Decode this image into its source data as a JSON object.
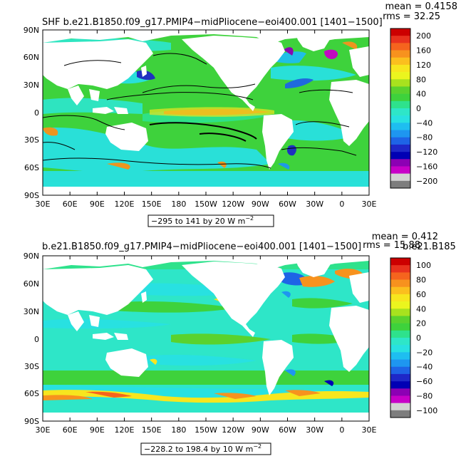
{
  "panels": [
    {
      "title": "SHF b.e21.B1850.f09_g17.PMIP4−midPliocene−eoi400.001  [1401−1500]",
      "mean_label": "mean = 0.4158",
      "rms_label": "rms = 32.25",
      "range_label": "−295 to 141 by 20  W m",
      "range_exp": "−2",
      "colorbar_labels": [
        "200",
        "160",
        "120",
        "80",
        "40",
        "0",
        "−40",
        "−80",
        "−120",
        "−160",
        "−200"
      ],
      "colors": [
        "#cc0000",
        "#e8321e",
        "#f5641e",
        "#f7921e",
        "#fbbf1e",
        "#f7e61e",
        "#ebf51e",
        "#a8e21e",
        "#5ad22e",
        "#3ed23c",
        "#2ee28c",
        "#2ee6c8",
        "#28e1e1",
        "#1ebef0",
        "#1e96f0",
        "#1e64e6",
        "#1e28c8",
        "#0000b4",
        "#8c00b4",
        "#c800c8",
        "#d2d2d2",
        "#7d7d7d"
      ]
    },
    {
      "title": "b.e21.B1850.f09_g17.PMIP4−midPliocene−eoi400.001  [1401−1500]",
      "mean_label": "mean = 0.412",
      "rms_label": "rms = 15.88",
      "overlap_label": "b.e21.B185",
      "range_label": "−228.2 to 198.4 by 10  W m",
      "range_exp": "−2",
      "colorbar_labels": [
        "100",
        "80",
        "60",
        "40",
        "20",
        "0",
        "−20",
        "−40",
        "−60",
        "−80",
        "−100"
      ],
      "colors": [
        "#cc0000",
        "#e8321e",
        "#f5641e",
        "#f7921e",
        "#fbbf1e",
        "#f7e61e",
        "#ebf51e",
        "#a8e21e",
        "#5ad22e",
        "#3ed23c",
        "#2ee28c",
        "#2ee6c8",
        "#28e1e1",
        "#1ebef0",
        "#1e96f0",
        "#1e64e6",
        "#1e28c8",
        "#0000b4",
        "#8c00b4",
        "#c800c8",
        "#d2d2d2",
        "#7d7d7d"
      ]
    }
  ],
  "lat_labels": [
    "90N",
    "60N",
    "30N",
    "0",
    "30S",
    "60S",
    "90S"
  ],
  "lon_labels": [
    "30E",
    "60E",
    "90E",
    "120E",
    "150E",
    "180",
    "150W",
    "120W",
    "90W",
    "60W",
    "30W",
    "0",
    "30E"
  ],
  "land_color": "#ffffff",
  "ocean_base_color": "#3ed23c"
}
